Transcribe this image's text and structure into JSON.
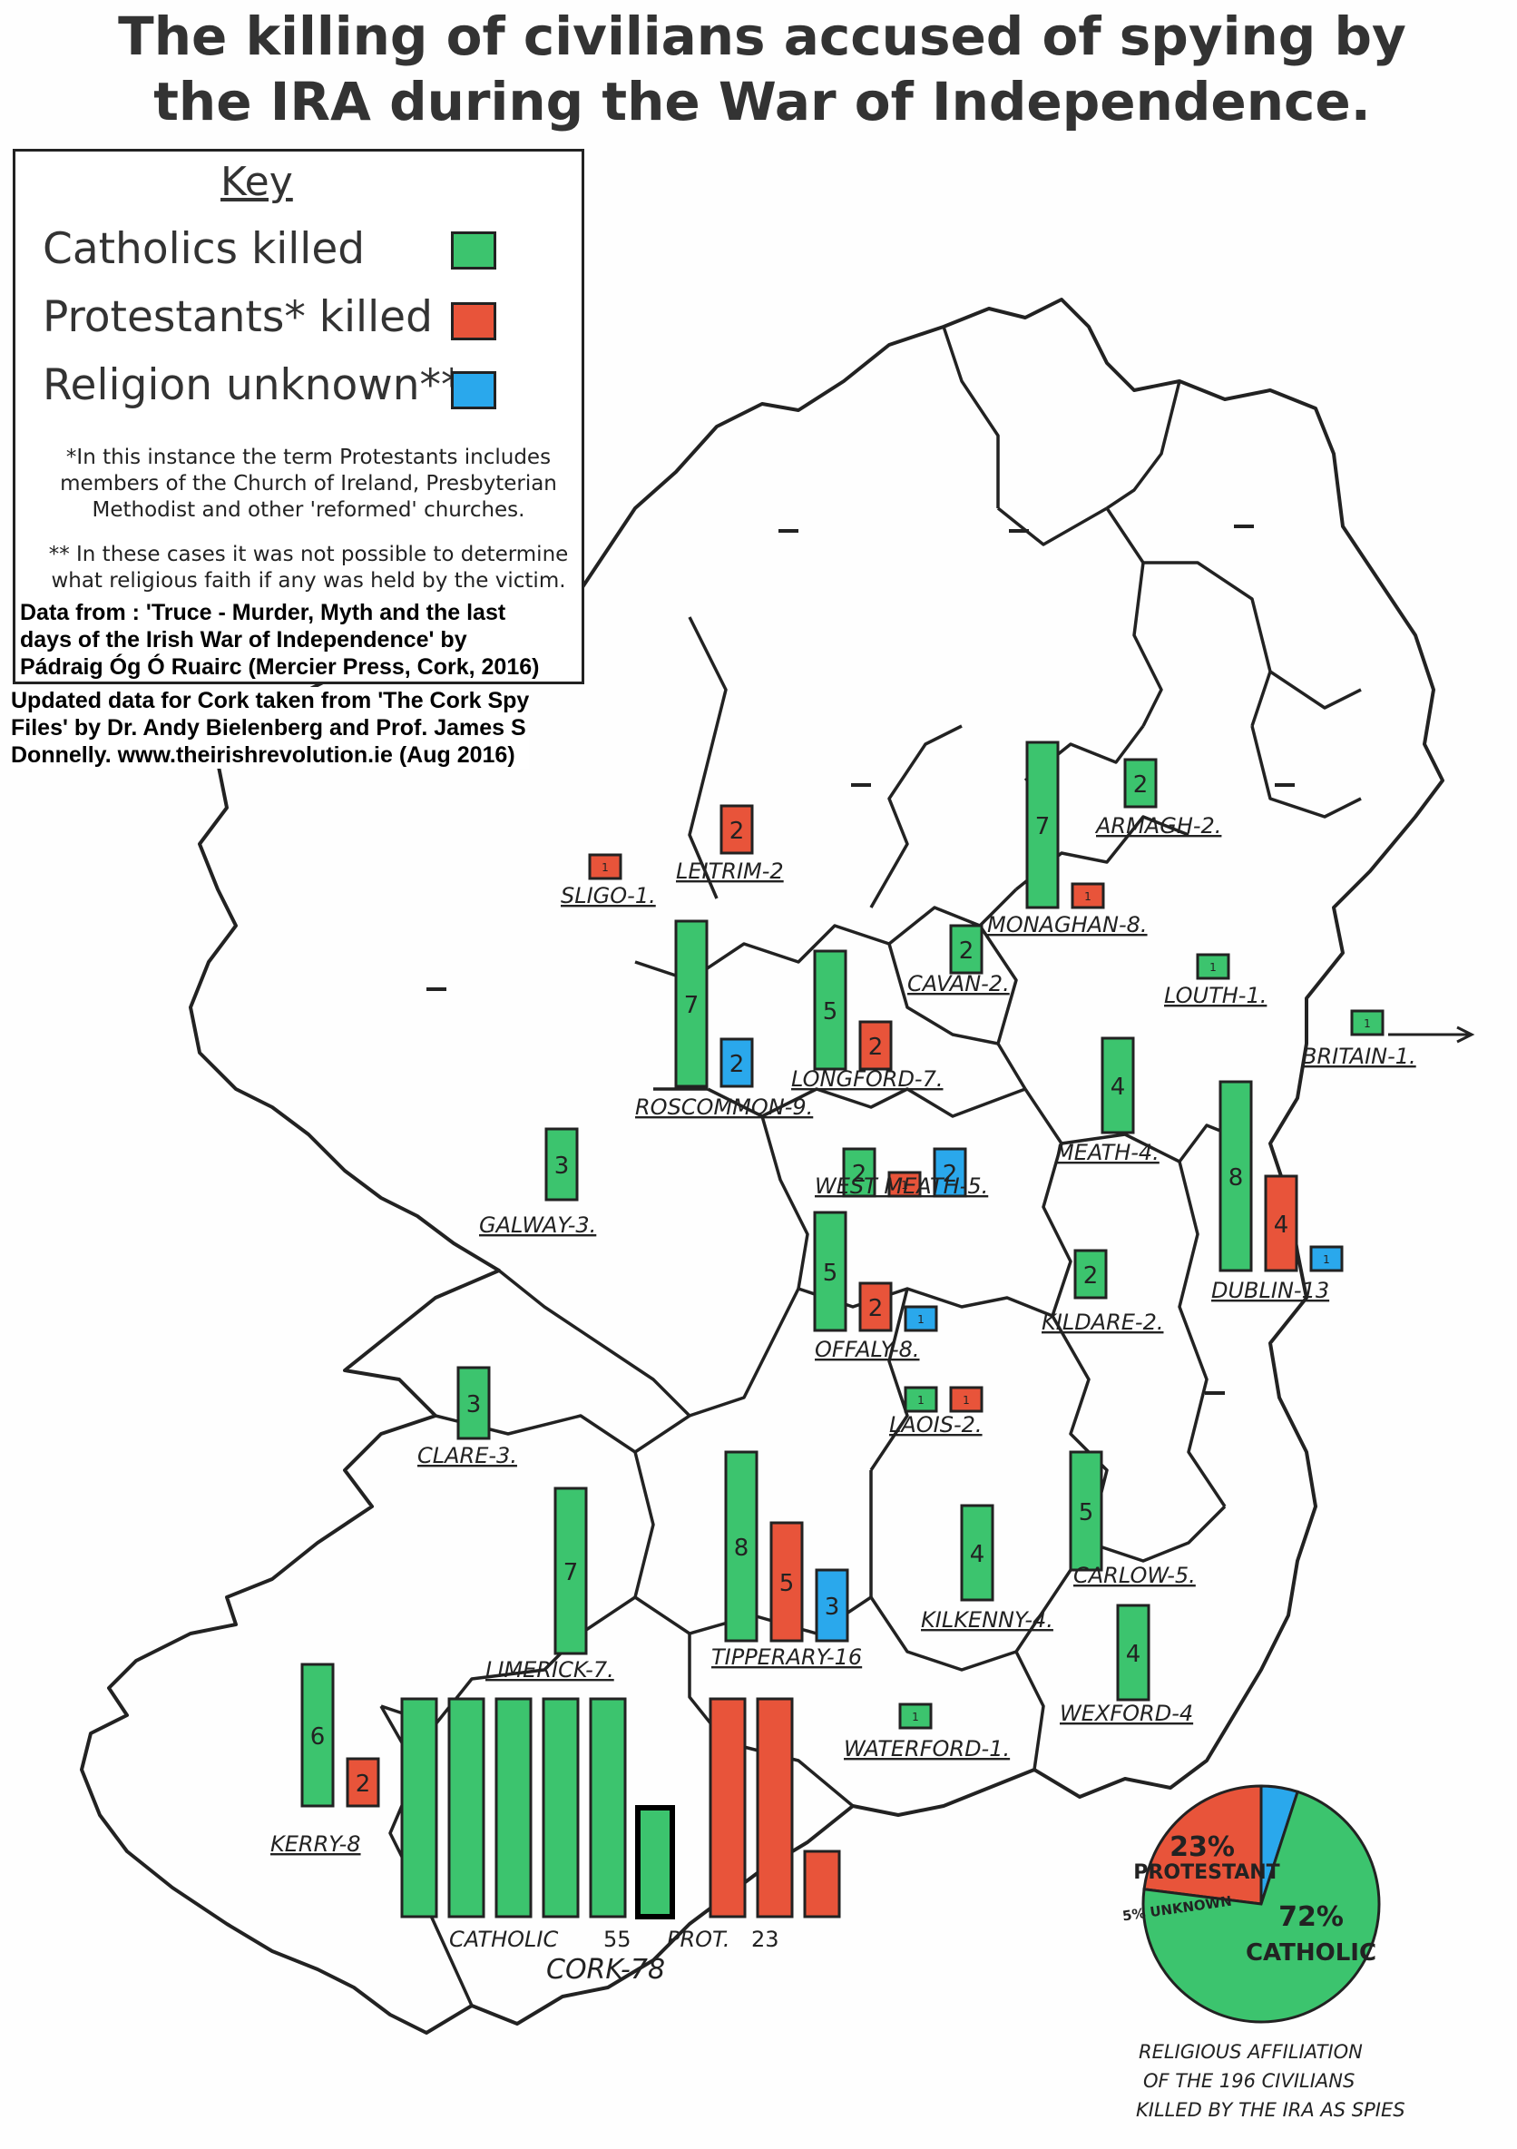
{
  "title": {
    "line1": "The killing of civilians accused of spying by",
    "line2": "the IRA during the War of Independence."
  },
  "key": {
    "heading": "Key",
    "catholic_label": "Catholics killed",
    "protestant_label": "Protestants* killed",
    "unknown_label": "Religion unknown**",
    "note1_lines": [
      "*In this instance the term Protestants includes",
      "members of the Church of Ireland, Presbyterian",
      "Methodist and other 'reformed' churches."
    ],
    "note2_lines": [
      "** In these cases it was not possible to determine",
      "what religious faith if any was held by the victim."
    ]
  },
  "source": {
    "lines1": [
      "Data from : 'Truce - Murder, Myth and the last",
      "days of the Irish War of Independence' by",
      "Pádraig Óg Ó Ruairc (Mercier Press, Cork, 2016)"
    ],
    "lines2": [
      "Updated data for Cork taken from 'The Cork Spy",
      "Files' by Dr. Andy Bielenberg and Prof. James S",
      "Donnelly. www.theirishrevolution.ie (Aug 2016)"
    ]
  },
  "colors": {
    "catholic": "#3cc46e",
    "protestant": "#e8543a",
    "unknown": "#2aa8ec",
    "outline": "#222222"
  },
  "chart_data": {
    "type": "bar",
    "counties": [
      {
        "label": "SLIGO-1.",
        "catholic": 0,
        "protestant": 1,
        "unknown": 0
      },
      {
        "label": "LEITRIM-2",
        "catholic": 0,
        "protestant": 2,
        "unknown": 0
      },
      {
        "label": "ROSCOMMON-9.",
        "catholic": 7,
        "protestant": 0,
        "unknown": 2
      },
      {
        "label": "LONGFORD-7.",
        "catholic": 5,
        "protestant": 2,
        "unknown": 0
      },
      {
        "label": "MONAGHAN-8.",
        "catholic": 7,
        "protestant": 1,
        "unknown": 0
      },
      {
        "label": "ARMAGH-2.",
        "catholic": 2,
        "protestant": 0,
        "unknown": 0
      },
      {
        "label": "CAVAN-2.",
        "catholic": 2,
        "protestant": 0,
        "unknown": 0
      },
      {
        "label": "LOUTH-1.",
        "catholic": 1,
        "protestant": 0,
        "unknown": 0
      },
      {
        "label": "BRITAIN-1.",
        "catholic": 1,
        "protestant": 0,
        "unknown": 0
      },
      {
        "label": "MEATH-4.",
        "catholic": 4,
        "protestant": 0,
        "unknown": 0
      },
      {
        "label": "WEST MEATH-5.",
        "catholic": 2,
        "protestant": 1,
        "unknown": 2
      },
      {
        "label": "GALWAY-3.",
        "catholic": 3,
        "protestant": 0,
        "unknown": 0
      },
      {
        "label": "DUBLIN-13",
        "catholic": 8,
        "protestant": 4,
        "unknown": 1
      },
      {
        "label": "KILDARE-2.",
        "catholic": 2,
        "protestant": 0,
        "unknown": 0
      },
      {
        "label": "OFFALY-8.",
        "catholic": 5,
        "protestant": 2,
        "unknown": 1
      },
      {
        "label": "CLARE-3.",
        "catholic": 3,
        "protestant": 0,
        "unknown": 0
      },
      {
        "label": "LAOIS-2.",
        "catholic": 1,
        "protestant": 1,
        "unknown": 0
      },
      {
        "label": "TIPPERARY-16",
        "catholic": 8,
        "protestant": 5,
        "unknown": 3
      },
      {
        "label": "KILKENNY-4.",
        "catholic": 4,
        "protestant": 0,
        "unknown": 0
      },
      {
        "label": "CARLOW-5.",
        "catholic": 5,
        "protestant": 0,
        "unknown": 0
      },
      {
        "label": "LIMERICK-7.",
        "catholic": 7,
        "protestant": 0,
        "unknown": 0
      },
      {
        "label": "WEXFORD-4",
        "catholic": 4,
        "protestant": 0,
        "unknown": 0
      },
      {
        "label": "WATERFORD-1.",
        "catholic": 1,
        "protestant": 0,
        "unknown": 0
      },
      {
        "label": "KERRY-8",
        "catholic": 6,
        "protestant": 2,
        "unknown": 0
      },
      {
        "label": "CORK-78",
        "catholic": 55,
        "protestant": 23,
        "unknown": 0
      }
    ],
    "cork": {
      "catholic_label": "CATHOLIC",
      "catholic_value": "55",
      "protestant_label": "PROT.",
      "protestant_value": "23"
    },
    "pie": {
      "type": "pie",
      "slices": [
        {
          "label": "CATHOLIC",
          "pct": 72,
          "text": "72%"
        },
        {
          "label": "PROTESTANT",
          "pct": 23,
          "text": "23%"
        },
        {
          "label": "UNKNOWN",
          "pct": 5,
          "text": "5% UNKNOWN"
        }
      ],
      "caption_lines": [
        "RELIGIOUS AFFILIATION",
        "OF THE 196 CIVILIANS",
        "KILLED BY THE IRA AS SPIES"
      ]
    }
  }
}
